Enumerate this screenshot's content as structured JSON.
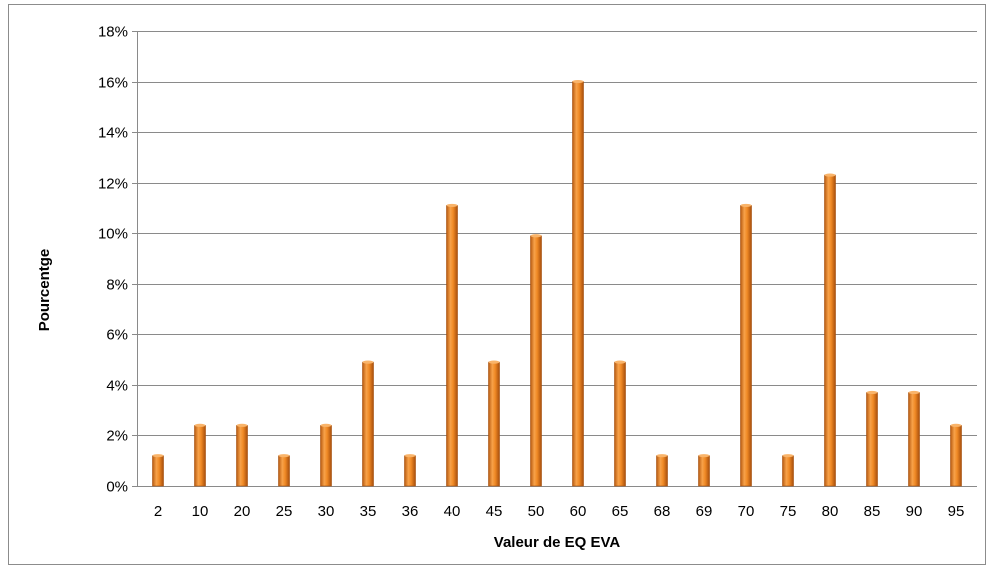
{
  "chart_data": {
    "type": "bar",
    "title": "",
    "xlabel": "Valeur de EQ EVA",
    "ylabel": "Pourcentge",
    "categories": [
      "2",
      "10",
      "20",
      "25",
      "30",
      "35",
      "36",
      "40",
      "45",
      "50",
      "60",
      "65",
      "68",
      "69",
      "70",
      "75",
      "80",
      "85",
      "90",
      "95"
    ],
    "values": [
      1.2,
      2.4,
      2.4,
      1.2,
      2.4,
      4.9,
      1.2,
      11.1,
      4.9,
      9.9,
      16.0,
      4.9,
      1.2,
      1.2,
      11.1,
      1.2,
      12.3,
      3.7,
      3.7,
      2.4
    ],
    "ylim": [
      0,
      18
    ],
    "yticks": [
      "0%",
      "2%",
      "4%",
      "6%",
      "8%",
      "10%",
      "12%",
      "14%",
      "16%",
      "18%"
    ],
    "grid": true,
    "legend": "none",
    "bar_color": "#e8821e"
  }
}
